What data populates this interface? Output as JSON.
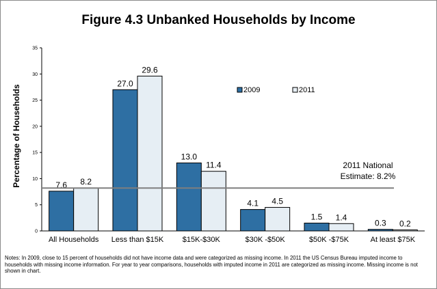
{
  "chart_data": {
    "type": "bar",
    "title": "Figure 4.3  Unbanked Households by Income",
    "ylabel": "Percentage of  Households",
    "xlabel": "",
    "ylim": [
      0,
      35
    ],
    "yticks": [
      0,
      5,
      10,
      15,
      20,
      25,
      30,
      35
    ],
    "categories": [
      "All Households",
      "Less than $15K",
      "$15K-$30K",
      "$30K -$50K",
      "$50K -$75K",
      "At least $75K"
    ],
    "series": [
      {
        "name": "2009",
        "values": [
          7.6,
          27.0,
          13.0,
          4.1,
          1.5,
          0.3
        ],
        "labels": [
          "7.6",
          "27.0",
          "13.0",
          "4.1",
          "1.5",
          "0.3"
        ],
        "color": "#2e6fa3"
      },
      {
        "name": "2011",
        "values": [
          8.2,
          29.6,
          11.4,
          4.5,
          1.4,
          0.2
        ],
        "labels": [
          "8.2",
          "29.6",
          "11.4",
          "4.5",
          "1.4",
          "0.2"
        ],
        "color": "#e6eef4"
      }
    ],
    "reference_line": {
      "value": 8.2,
      "label_line1": "2011 National",
      "label_line2": "Estimate: 8.2%",
      "color": "#7f7f7f"
    },
    "legend_position": "top-right",
    "grid": false
  },
  "notes": "Notes: In 2009, close to 15 percent of households did not have income data and were categorized as missing income. In 2011 the US Census Bureau imputed income to households with missing income information. For year to year comparisons, households with imputed income in 2011 are categorized as missing income. Missing income is not shown in chart."
}
